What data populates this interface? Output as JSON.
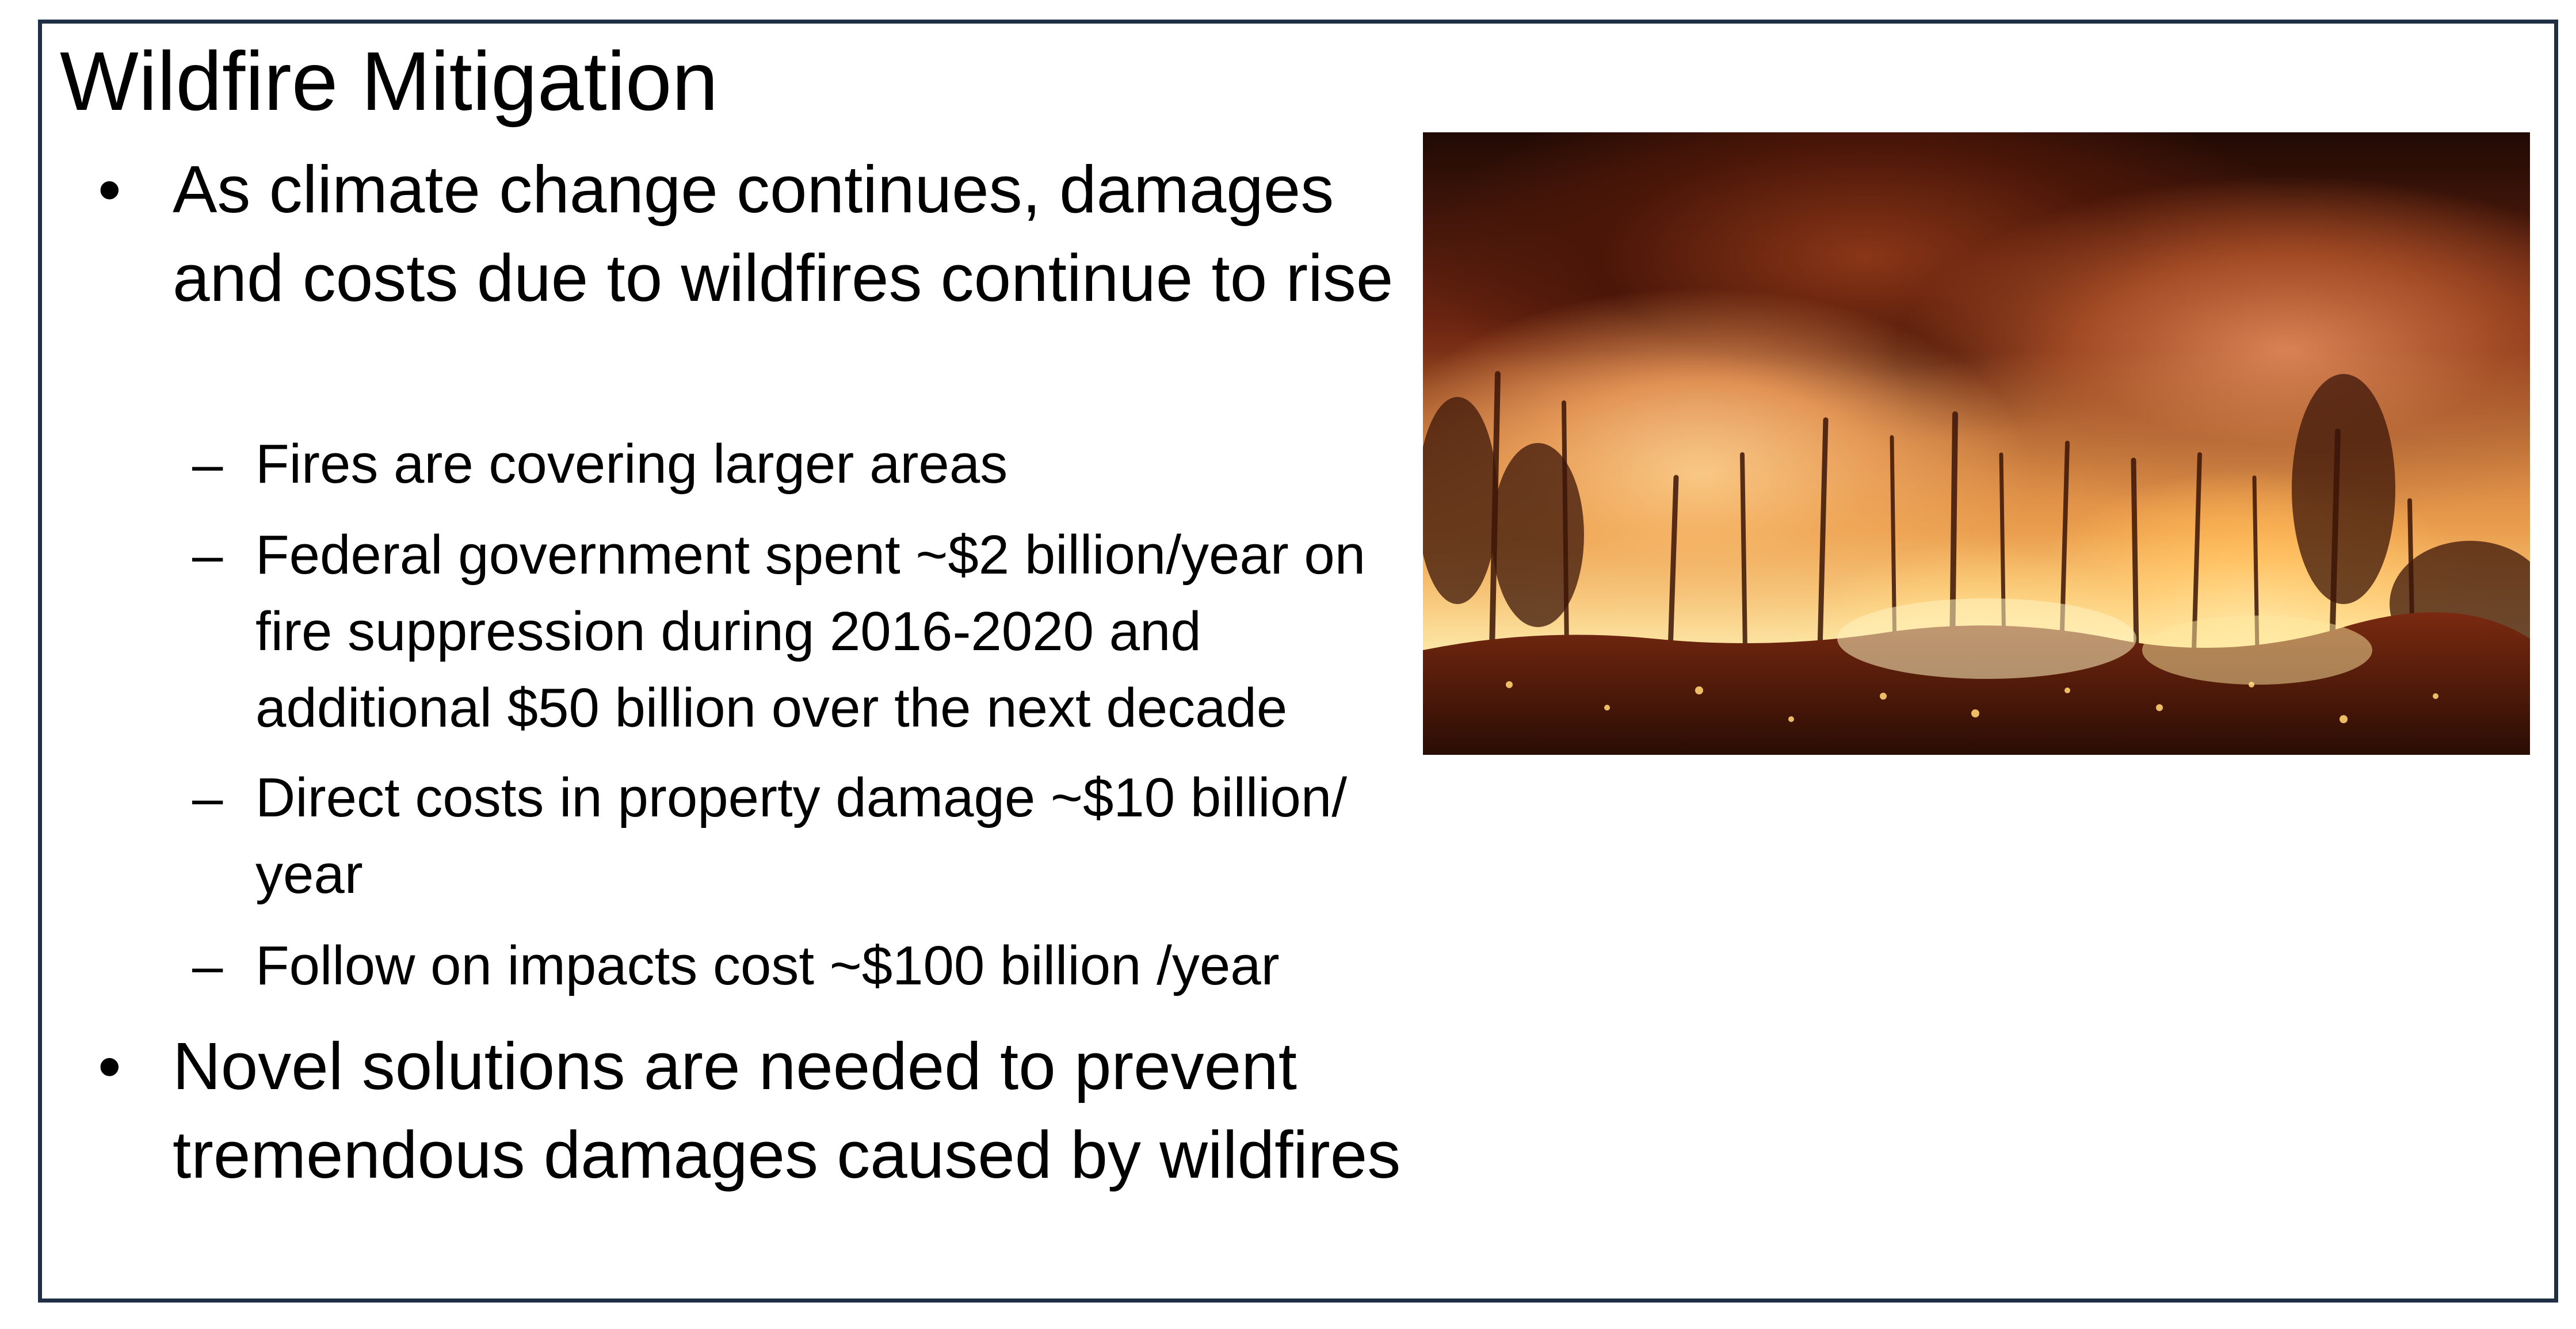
{
  "slide": {
    "title": "Wildfire Mitigation",
    "bullets": [
      {
        "text": "As climate change continues, damages and costs due to wildfires continue to rise",
        "sub_bullets": [
          "Fires are covering larger areas",
          "Federal government spent ~$2 billion/year on fire suppression during 2016-2020 and additional $50 billion over the next decade",
          "Direct costs in property damage ~$10 billion/ year",
          "Follow on impacts cost ~$100 billion /year"
        ]
      },
      {
        "text": "Novel solutions are needed to prevent tremendous damages caused by wildfires",
        "sub_bullets": []
      }
    ],
    "bullet_glyph": "•",
    "dash_glyph": "–",
    "image": {
      "icon": "forest-fire-photo"
    }
  },
  "colors": {
    "frame": "#1f2f45",
    "text": "#000000",
    "background": "#ffffff"
  }
}
